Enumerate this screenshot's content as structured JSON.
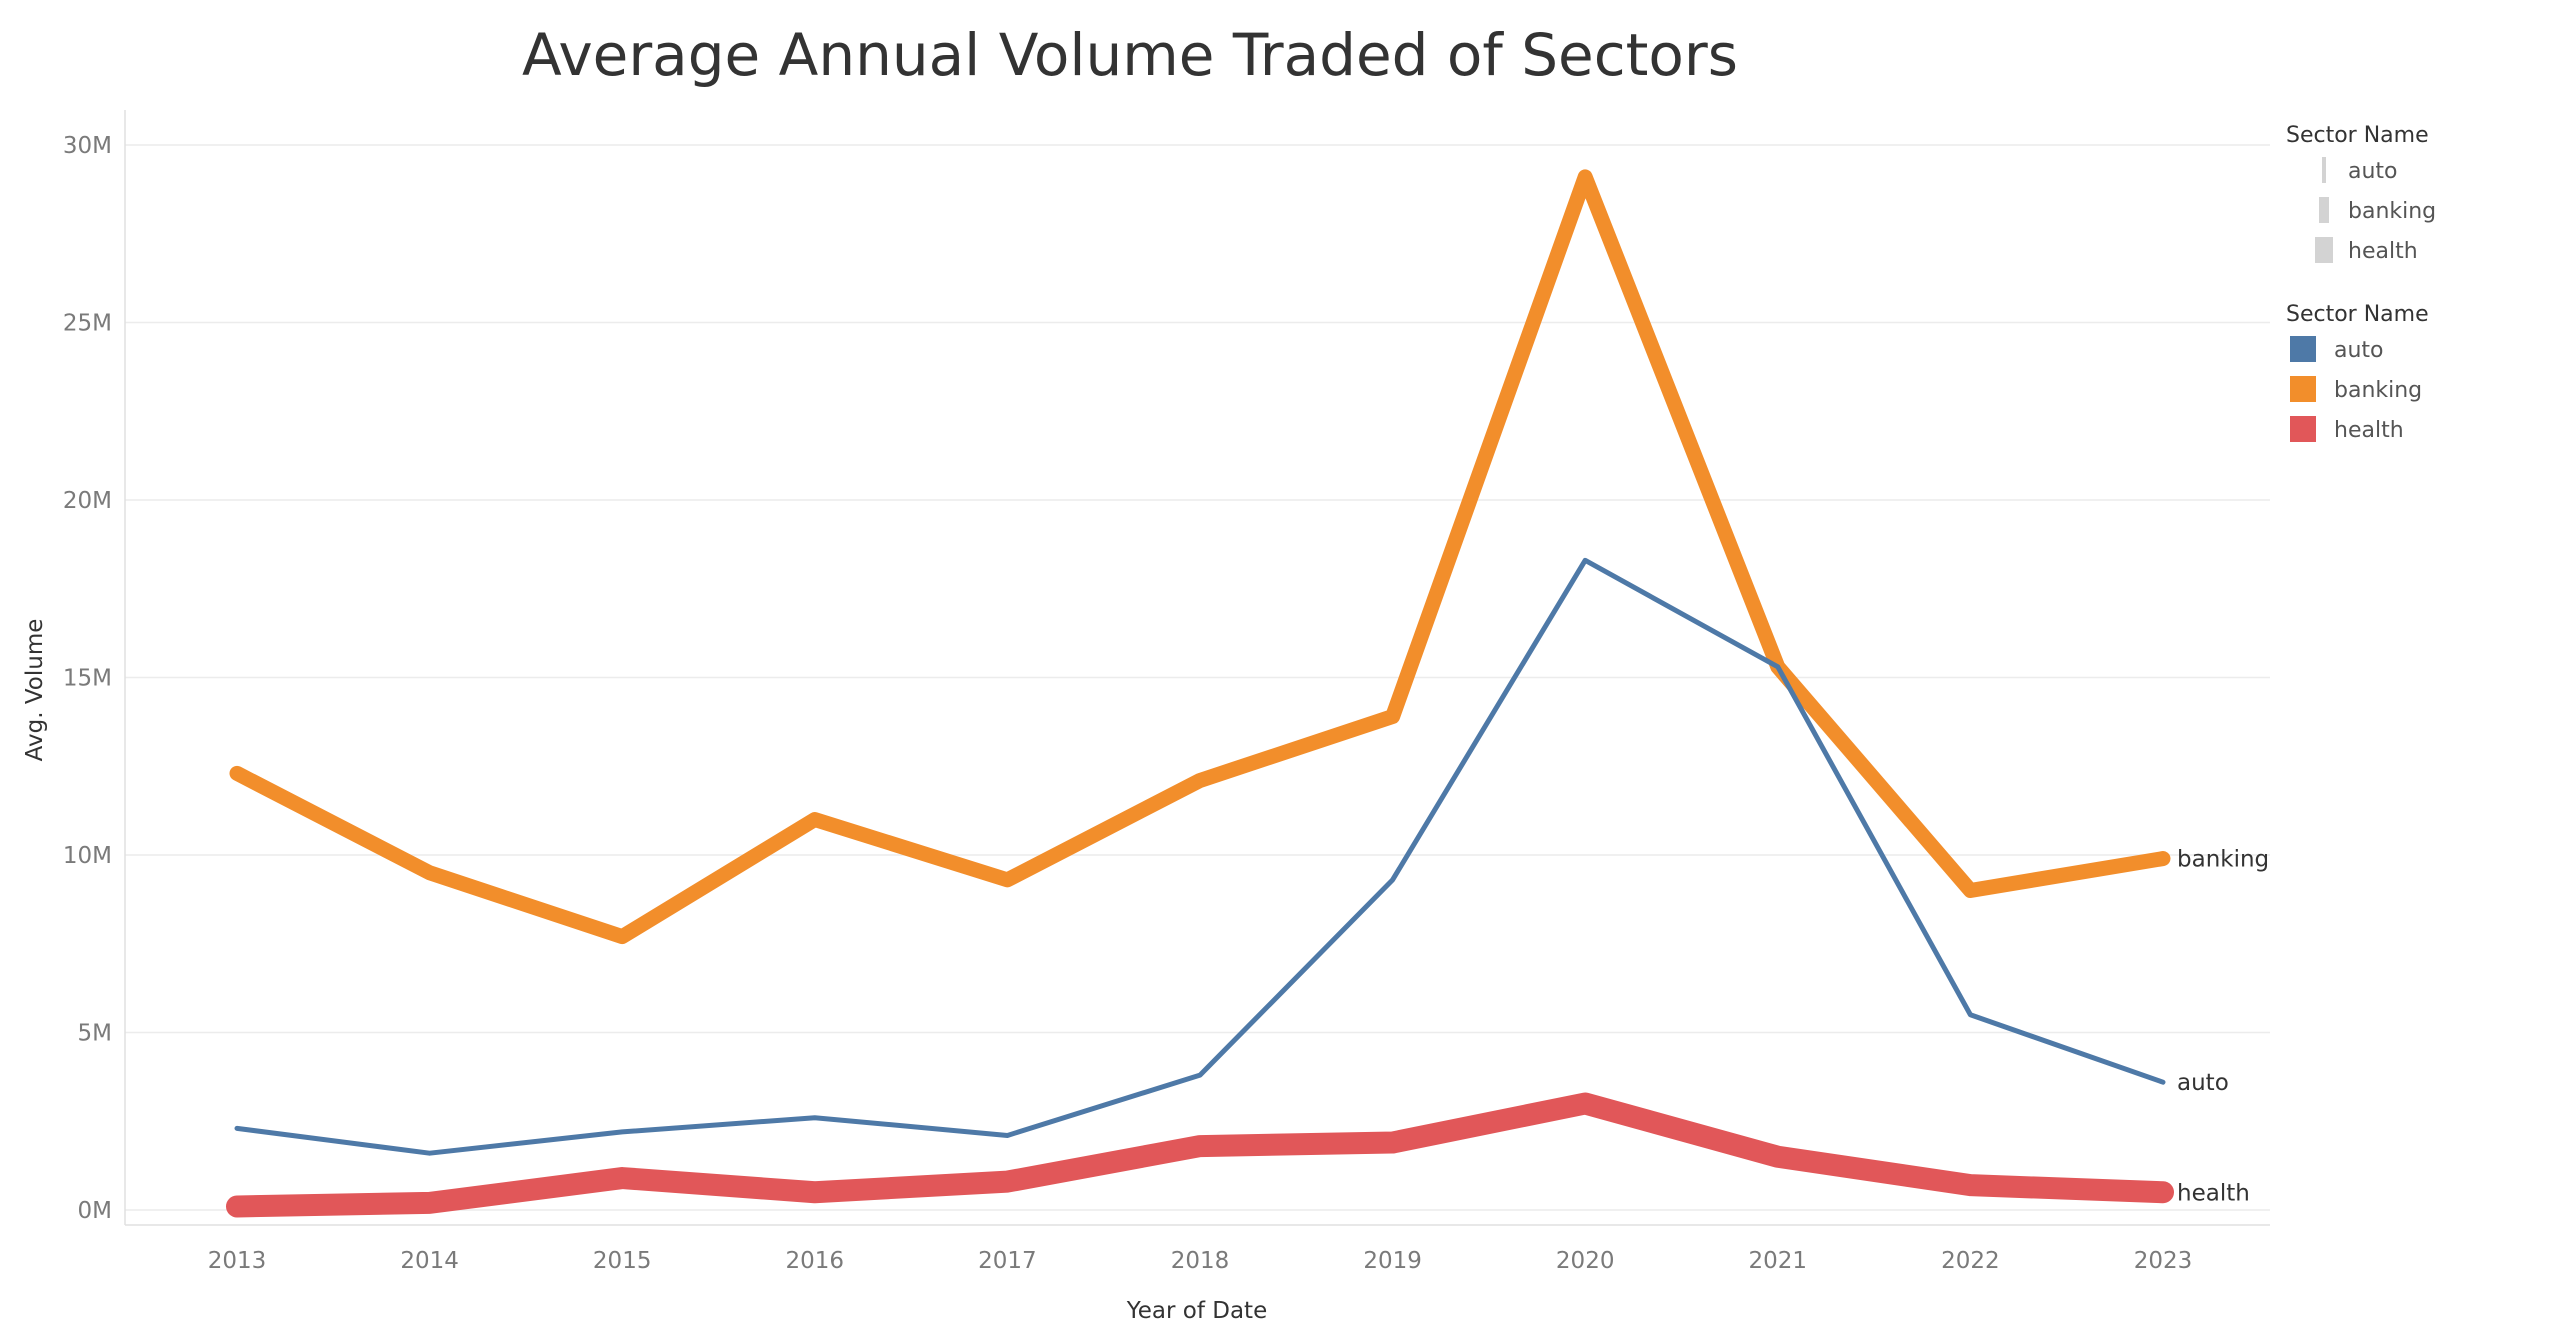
{
  "chart_data": {
    "type": "line",
    "title": "Average Annual Volume Traded of Sectors",
    "xlabel": "Year of Date",
    "ylabel": "Avg. Volume",
    "x": [
      "2013",
      "2014",
      "2015",
      "2016",
      "2017",
      "2018",
      "2019",
      "2020",
      "2021",
      "2022",
      "2023"
    ],
    "y_ticks": [
      "0M",
      "5M",
      "10M",
      "15M",
      "20M",
      "25M",
      "30M"
    ],
    "y_tick_values": [
      0,
      5000000,
      10000000,
      15000000,
      20000000,
      25000000,
      30000000
    ],
    "ylim": [
      0,
      30000000
    ],
    "grid": true,
    "legend_position": "right",
    "series": [
      {
        "name": "auto",
        "color": "#4e79a7",
        "weight": "thin",
        "values": [
          2300000,
          1600000,
          2200000,
          2600000,
          2100000,
          3800000,
          9300000,
          18300000,
          15300000,
          5500000,
          3600000
        ]
      },
      {
        "name": "banking",
        "color": "#f28e2b",
        "weight": "medium",
        "values": [
          12300000,
          9500000,
          7700000,
          11000000,
          9300000,
          12100000,
          13900000,
          29100000,
          15300000,
          9000000,
          9900000
        ]
      },
      {
        "name": "health",
        "color": "#e15759",
        "weight": "thick",
        "values": [
          100000,
          200000,
          900000,
          500000,
          800000,
          1800000,
          1900000,
          3000000,
          1500000,
          700000,
          500000
        ]
      }
    ],
    "legend_size": {
      "title": "Sector Name",
      "items": [
        "auto",
        "banking",
        "health"
      ],
      "color": "#d3d3d3"
    },
    "legend_color": {
      "title": "Sector Name",
      "items": [
        {
          "label": "auto",
          "color": "#4e79a7"
        },
        {
          "label": "banking",
          "color": "#f28e2b"
        },
        {
          "label": "health",
          "color": "#e15759"
        }
      ]
    },
    "end_labels": [
      "auto",
      "banking",
      "health"
    ]
  }
}
